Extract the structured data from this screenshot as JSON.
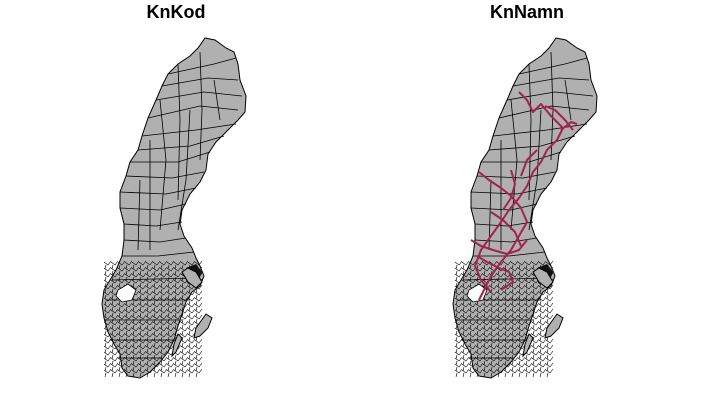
{
  "panels": [
    {
      "title": "KnKod",
      "show_overlay": false
    },
    {
      "title": "KnNamn",
      "show_overlay": true
    }
  ],
  "colors": {
    "fill": "#b0b0b0",
    "border": "#000000",
    "overlay": "#a3234e",
    "background": "#ffffff"
  }
}
